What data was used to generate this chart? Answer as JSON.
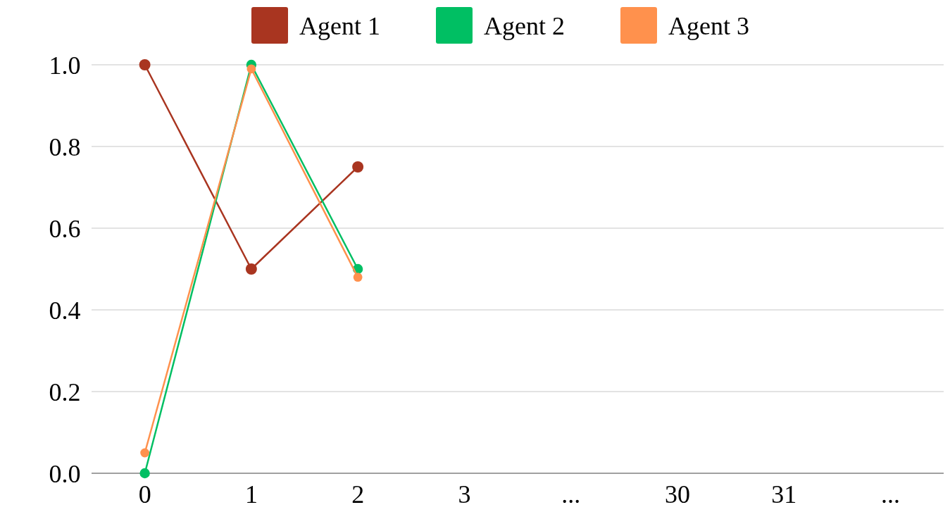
{
  "chart_data": {
    "type": "line",
    "categories": [
      "0",
      "1",
      "2",
      "3",
      "...",
      "30",
      "31",
      "..."
    ],
    "series": [
      {
        "name": "Agent 1",
        "color": "#a93520",
        "values": [
          1.0,
          0.5,
          0.75,
          null,
          null,
          null,
          null,
          null
        ]
      },
      {
        "name": "Agent 2",
        "color": "#00bf63",
        "values": [
          0.0,
          1.0,
          0.5,
          null,
          null,
          null,
          null,
          null
        ]
      },
      {
        "name": "Agent 3",
        "color": "#ff914d",
        "values": [
          0.05,
          0.99,
          0.48,
          null,
          null,
          null,
          null,
          null
        ]
      }
    ],
    "ylim": [
      0,
      1
    ],
    "yticks": [
      {
        "value": 0,
        "label": "0.0"
      },
      {
        "value": 0.2,
        "label": "0.2"
      },
      {
        "value": 0.4,
        "label": "0.4"
      },
      {
        "value": 0.6,
        "label": "0.6"
      },
      {
        "value": 0.8,
        "label": "0.8"
      },
      {
        "value": 1,
        "label": "1.0"
      }
    ],
    "grid": "y",
    "legend": "top",
    "marker": "circle",
    "line_style": "solid"
  }
}
